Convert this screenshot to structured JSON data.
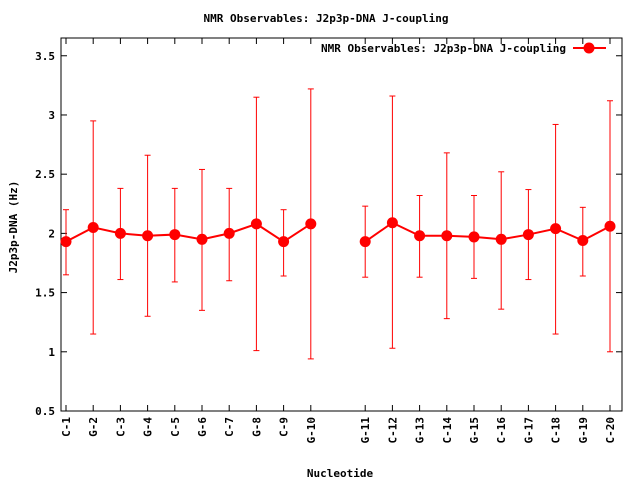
{
  "chart_data": {
    "type": "line",
    "title": "NMR Observables: J2p3p-DNA J-coupling",
    "xlabel": "Nucleotide",
    "ylabel": "J2p3p-DNA (Hz)",
    "ylim": [
      0.5,
      3.65
    ],
    "yticks": [
      "0.5",
      "1",
      "1.5",
      "2",
      "2.5",
      "3",
      "3.5"
    ],
    "legend_position": "top-right",
    "grid": false,
    "color": "#ff0000",
    "series": [
      {
        "name": "NMR Observables: J2p3p-DNA J-coupling",
        "segments": [
          {
            "categories": [
              "C-1",
              "G-2",
              "C-3",
              "G-4",
              "C-5",
              "G-6",
              "C-7",
              "G-8",
              "C-9",
              "G-10"
            ],
            "values": [
              1.93,
              2.05,
              2.0,
              1.98,
              1.99,
              1.95,
              2.0,
              2.08,
              1.93,
              2.08
            ],
            "err_low": [
              1.65,
              1.15,
              1.61,
              1.3,
              1.59,
              1.35,
              1.6,
              1.01,
              1.64,
              0.94
            ],
            "err_high": [
              2.2,
              2.95,
              2.38,
              2.66,
              2.38,
              2.54,
              2.38,
              3.15,
              2.2,
              3.22
            ]
          },
          {
            "categories": [
              "G-11",
              "C-12",
              "G-13",
              "C-14",
              "G-15",
              "C-16",
              "G-17",
              "C-18",
              "G-19",
              "C-20"
            ],
            "values": [
              1.93,
              2.09,
              1.98,
              1.98,
              1.97,
              1.95,
              1.99,
              2.04,
              1.94,
              2.06
            ],
            "err_low": [
              1.63,
              1.03,
              1.63,
              1.28,
              1.62,
              1.36,
              1.61,
              1.15,
              1.64,
              1.0
            ],
            "err_high": [
              2.23,
              3.16,
              2.32,
              2.68,
              2.32,
              2.52,
              2.37,
              2.92,
              2.22,
              3.12
            ]
          }
        ]
      }
    ]
  }
}
